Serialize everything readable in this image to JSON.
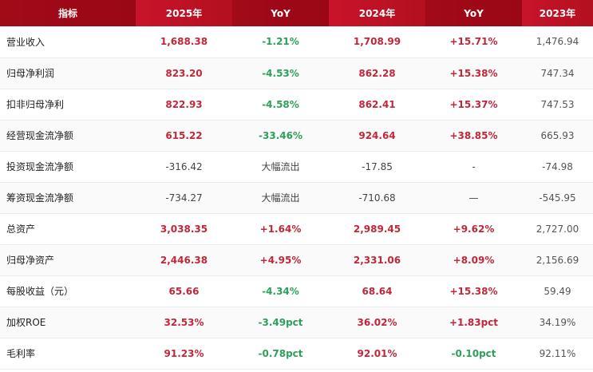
{
  "headers": [
    "指标",
    "2025年",
    "YoY",
    "2024年",
    "YoY",
    "2023年"
  ],
  "rows": [
    {
      "label": "营业收入",
      "v2025": "1,688.38",
      "yoy25": "-1.21%",
      "v2024": "1,708.99",
      "yoy24": "+15.71%",
      "v2023": "1,476.94",
      "s2025": "red",
      "sy25": "green",
      "s2024": "red",
      "sy24": "red"
    },
    {
      "label": "归母净利润",
      "v2025": "823.20",
      "yoy25": "-4.53%",
      "v2024": "862.28",
      "yoy24": "+15.38%",
      "v2023": "747.34",
      "s2025": "red",
      "sy25": "green",
      "s2024": "red",
      "sy24": "red"
    },
    {
      "label": "扣非归母净利",
      "v2025": "822.93",
      "yoy25": "-4.58%",
      "v2024": "862.41",
      "yoy24": "+15.37%",
      "v2023": "747.53",
      "s2025": "red",
      "sy25": "green",
      "s2024": "red",
      "sy24": "red"
    },
    {
      "label": "经营现金流净额",
      "v2025": "615.22",
      "yoy25": "-33.46%",
      "v2024": "924.64",
      "yoy24": "+38.85%",
      "v2023": "665.93",
      "s2025": "red",
      "sy25": "green",
      "s2024": "red",
      "sy24": "red"
    },
    {
      "label": "投资现金流净额",
      "v2025": "-316.42",
      "yoy25": "大幅流出",
      "v2024": "-17.85",
      "yoy24": "-",
      "v2023": "-74.98",
      "s2025": "plain",
      "sy25": "plain",
      "s2024": "plain",
      "sy24": "plain"
    },
    {
      "label": "筹资现金流净额",
      "v2025": "-734.27",
      "yoy25": "大幅流出",
      "v2024": "-710.68",
      "yoy24": "—",
      "v2023": "-545.95",
      "s2025": "plain",
      "sy25": "plain",
      "s2024": "plain",
      "sy24": "plain"
    },
    {
      "label": "总资产",
      "v2025": "3,038.35",
      "yoy25": "+1.64%",
      "v2024": "2,989.45",
      "yoy24": "+9.62%",
      "v2023": "2,727.00",
      "s2025": "red",
      "sy25": "red",
      "s2024": "red",
      "sy24": "red"
    },
    {
      "label": "归母净资产",
      "v2025": "2,446.38",
      "yoy25": "+4.95%",
      "v2024": "2,331.06",
      "yoy24": "+8.09%",
      "v2023": "2,156.69",
      "s2025": "red",
      "sy25": "red",
      "s2024": "red",
      "sy24": "red"
    },
    {
      "label": "每股收益（元）",
      "v2025": "65.66",
      "yoy25": "-4.34%",
      "v2024": "68.64",
      "yoy24": "+15.38%",
      "v2023": "59.49",
      "s2025": "red",
      "sy25": "green",
      "s2024": "red",
      "sy24": "red"
    },
    {
      "label": "加权ROE",
      "v2025": "32.53%",
      "yoy25": "-3.49pct",
      "v2024": "36.02%",
      "yoy24": "+1.83pct",
      "v2023": "34.19%",
      "s2025": "red",
      "sy25": "green",
      "s2024": "red",
      "sy24": "red"
    },
    {
      "label": "毛利率",
      "v2025": "91.23%",
      "yoy25": "-0.78pct",
      "v2024": "92.01%",
      "yoy24": "-0.10pct",
      "v2023": "92.11%",
      "s2025": "red",
      "sy25": "green",
      "s2024": "red",
      "sy24": "green"
    }
  ]
}
